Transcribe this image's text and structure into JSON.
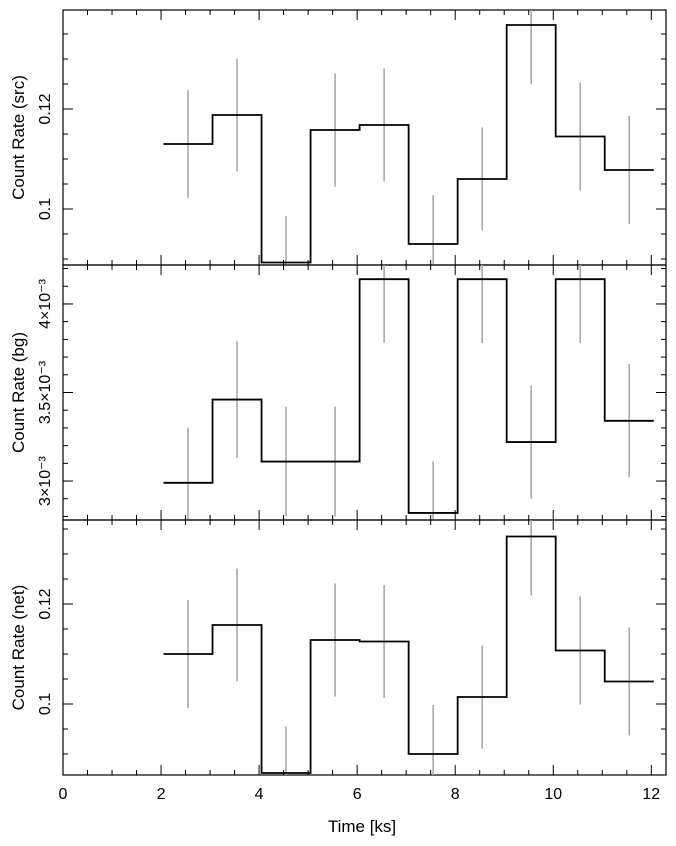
{
  "chart_data": {
    "type": "line",
    "xlabel": "Time [ks]",
    "xlim": [
      0,
      12.3
    ],
    "x_ticks": [
      "0",
      "2",
      "4",
      "6",
      "8",
      "10",
      "12"
    ],
    "x_tick_values": [
      0,
      2,
      4,
      6,
      8,
      10,
      12
    ],
    "bin_edges": [
      2.05,
      3.05,
      4.05,
      5.05,
      6.05,
      7.05,
      8.05,
      9.05,
      10.05,
      11.05,
      12.05
    ],
    "bin_centers": [
      2.55,
      3.55,
      4.55,
      5.55,
      6.55,
      7.55,
      8.55,
      9.55,
      10.55,
      11.55
    ],
    "panels": [
      {
        "name": "src",
        "ylabel": "Count Rate (src)",
        "ylim": [
          0.0888,
          0.1398
        ],
        "y_tick_labels": [
          "0.1",
          "0.12"
        ],
        "y_tick_values": [
          0.1,
          0.12
        ],
        "y_minor_step": 0.005,
        "values": [
          0.113,
          0.1188,
          0.0893,
          0.1158,
          0.1168,
          0.093,
          0.106,
          0.1368,
          0.1145,
          0.1078
        ],
        "error": [
          0.0108,
          0.0113,
          0.0093,
          0.0113,
          0.0113,
          0.0098,
          0.0103,
          0.0118,
          0.0108,
          0.0108
        ]
      },
      {
        "name": "bg",
        "ylabel": "Count Rate (bg)",
        "ylim": [
          0.00278,
          0.00422
        ],
        "y_tick_labels": [
          "3×10⁻³",
          "3.5×10⁻³",
          "4×10⁻³"
        ],
        "y_tick_values": [
          0.003,
          0.0035,
          0.004
        ],
        "y_minor_step": 0.0001,
        "values": [
          0.00299,
          0.00346,
          0.00311,
          0.00311,
          0.00414,
          0.00282,
          0.00414,
          0.00322,
          0.00414,
          0.00334
        ],
        "error": [
          0.00031,
          0.00033,
          0.00031,
          0.00031,
          0.00036,
          0.00029,
          0.00036,
          0.00032,
          0.00036,
          0.00032
        ]
      },
      {
        "name": "net",
        "ylabel": "Count Rate (net)",
        "ylim": [
          0.0858,
          0.1368
        ],
        "y_tick_labels": [
          "0.1",
          "0.12"
        ],
        "y_tick_values": [
          0.1,
          0.12
        ],
        "y_minor_step": 0.005,
        "values": [
          0.11,
          0.1158,
          0.0862,
          0.1128,
          0.1125,
          0.09,
          0.1014,
          0.1335,
          0.1107,
          0.1045
        ],
        "error": [
          0.0108,
          0.0113,
          0.0093,
          0.0113,
          0.0113,
          0.0098,
          0.0103,
          0.0118,
          0.0108,
          0.0108
        ]
      }
    ]
  }
}
